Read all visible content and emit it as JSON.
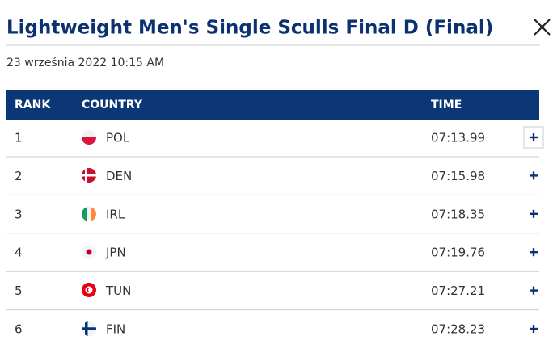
{
  "header": {
    "title": "Lightweight Men's Single Sculls Final D (Final)",
    "date": "23 września 2022 10:15 AM"
  },
  "table": {
    "columns": [
      "RANK",
      "COUNTRY",
      "TIME"
    ],
    "rows": [
      [
        "1",
        "POL",
        "07:13.99"
      ],
      [
        "2",
        "DEN",
        "07:15.98"
      ],
      [
        "3",
        "IRL",
        "07:18.35"
      ],
      [
        "4",
        "JPN",
        "07:19.76"
      ],
      [
        "5",
        "TUN",
        "07:27.21"
      ],
      [
        "6",
        "FIN",
        "07:28.23"
      ]
    ]
  }
}
